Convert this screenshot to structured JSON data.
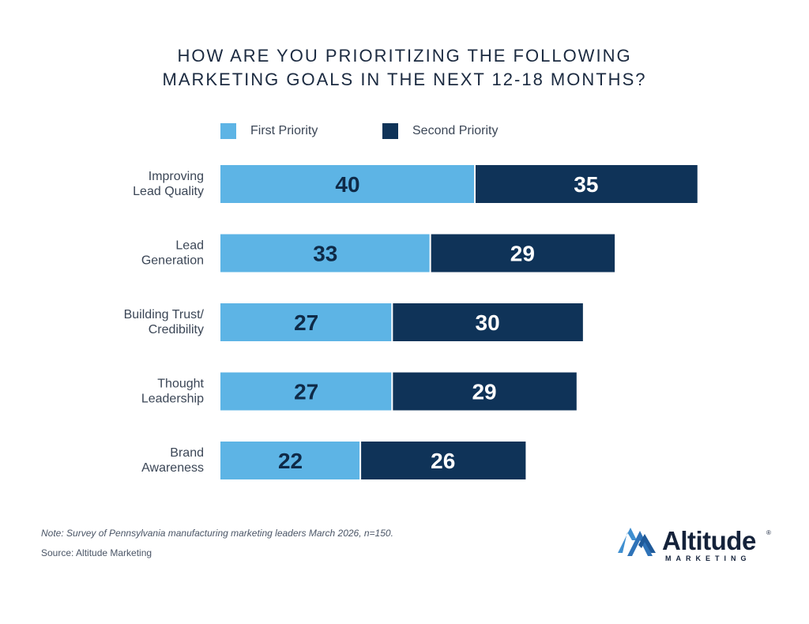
{
  "title_lines": [
    "HOW ARE YOU PRIORITIZING THE FOLLOWING",
    "MARKETING GOALS IN THE NEXT 12-18 MONTHS?"
  ],
  "chart_data": {
    "type": "bar",
    "orientation": "horizontal",
    "stacked": true,
    "title": "HOW ARE YOU PRIORITIZING THE FOLLOWING MARKETING GOALS IN THE NEXT 12-18 MONTHS?",
    "categories": [
      [
        "Improving",
        "Lead Quality"
      ],
      [
        "Lead",
        "Generation"
      ],
      [
        "Building Trust/",
        "Credibility"
      ],
      [
        "Thought",
        "Leadership"
      ],
      [
        "Brand",
        "Awareness"
      ]
    ],
    "series": [
      {
        "name": "First Priority",
        "color": "#5db4e5",
        "values": [
          40,
          33,
          27,
          27,
          22
        ]
      },
      {
        "name": "Second Priority",
        "color": "#0f3358",
        "values": [
          35,
          29,
          30,
          29,
          26
        ]
      }
    ],
    "legend": "top",
    "grid": false
  },
  "note": "Note: Survey of Pennsylvania manufacturing marketing leaders March 2026, n=150.",
  "source": "Source: Altitude Marketing",
  "logo": {
    "word": "Altitude",
    "sub": "MARKETING",
    "mark": "®"
  }
}
